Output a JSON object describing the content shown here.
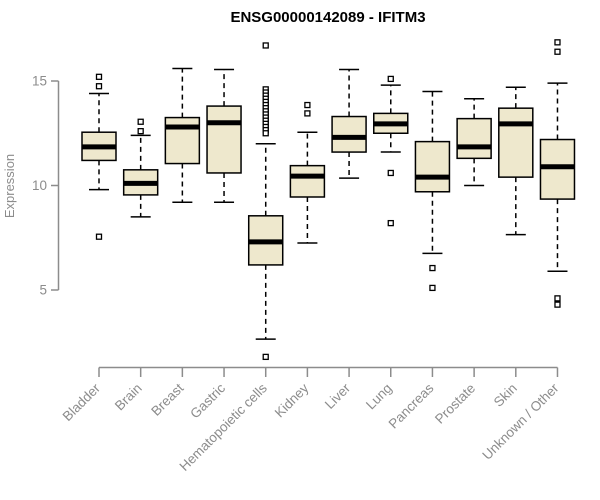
{
  "chart_data": {
    "type": "boxplot",
    "title": "ENSG00000142089 - IFITM3",
    "ylabel": "Expression",
    "xlabel": "",
    "yticks": [
      5,
      10,
      15
    ],
    "ylim_displayed": [
      5,
      15
    ],
    "grid": false,
    "legend": "none",
    "axis_color": "#8C8C8C",
    "box_fill": "#EEE8CD",
    "box_stroke": "#000000",
    "categories": [
      "Bladder",
      "Brain",
      "Breast",
      "Gastric",
      "Hematopoietic cells",
      "Kidney",
      "Liver",
      "Lung",
      "Pancreas",
      "Prostate",
      "Skin",
      "Unknown / Other"
    ],
    "series": [
      {
        "name": "Bladder",
        "whisker_low": 9.8,
        "q1": 11.2,
        "median": 11.85,
        "q3": 12.55,
        "whisker_high": 14.4,
        "outliers": [
          15.2,
          14.75,
          7.55
        ]
      },
      {
        "name": "Brain",
        "whisker_low": 8.5,
        "q1": 9.55,
        "median": 10.1,
        "q3": 10.75,
        "whisker_high": 12.4,
        "outliers": [
          13.05,
          12.6
        ]
      },
      {
        "name": "Breast",
        "whisker_low": 9.2,
        "q1": 11.05,
        "median": 12.8,
        "q3": 13.25,
        "whisker_high": 15.6,
        "outliers": []
      },
      {
        "name": "Gastric",
        "whisker_low": 9.2,
        "q1": 10.6,
        "median": 13.0,
        "q3": 13.8,
        "whisker_high": 15.55,
        "outliers": []
      },
      {
        "name": "Hematopoietic cells",
        "whisker_low": 2.65,
        "q1": 6.2,
        "median": 7.3,
        "q3": 8.55,
        "whisker_high": 12.0,
        "outliers": [
          16.7,
          14.6,
          14.45,
          14.3,
          14.15,
          14.0,
          13.85,
          13.7,
          13.55,
          13.4,
          13.25,
          13.1,
          12.95,
          12.8,
          12.65,
          12.5,
          1.8
        ]
      },
      {
        "name": "Kidney",
        "whisker_low": 7.25,
        "q1": 9.45,
        "median": 10.45,
        "q3": 10.95,
        "whisker_high": 12.55,
        "outliers": [
          13.85,
          13.45
        ]
      },
      {
        "name": "Liver",
        "whisker_low": 10.35,
        "q1": 11.6,
        "median": 12.3,
        "q3": 13.3,
        "whisker_high": 15.55,
        "outliers": []
      },
      {
        "name": "Lung",
        "whisker_low": 11.6,
        "q1": 12.5,
        "median": 12.95,
        "q3": 13.45,
        "whisker_high": 14.8,
        "outliers": [
          15.1,
          10.6,
          8.2
        ]
      },
      {
        "name": "Pancreas",
        "whisker_low": 6.75,
        "q1": 9.7,
        "median": 10.4,
        "q3": 12.1,
        "whisker_high": 14.5,
        "outliers": [
          6.05,
          5.1
        ]
      },
      {
        "name": "Prostate",
        "whisker_low": 10.0,
        "q1": 11.3,
        "median": 11.85,
        "q3": 13.2,
        "whisker_high": 14.15,
        "outliers": []
      },
      {
        "name": "Skin",
        "whisker_low": 7.65,
        "q1": 10.4,
        "median": 12.95,
        "q3": 13.7,
        "whisker_high": 14.7,
        "outliers": []
      },
      {
        "name": "Unknown / Other",
        "whisker_low": 5.9,
        "q1": 9.35,
        "median": 10.9,
        "q3": 12.2,
        "whisker_high": 14.9,
        "outliers": [
          16.85,
          16.4,
          4.6,
          4.3
        ]
      }
    ]
  }
}
